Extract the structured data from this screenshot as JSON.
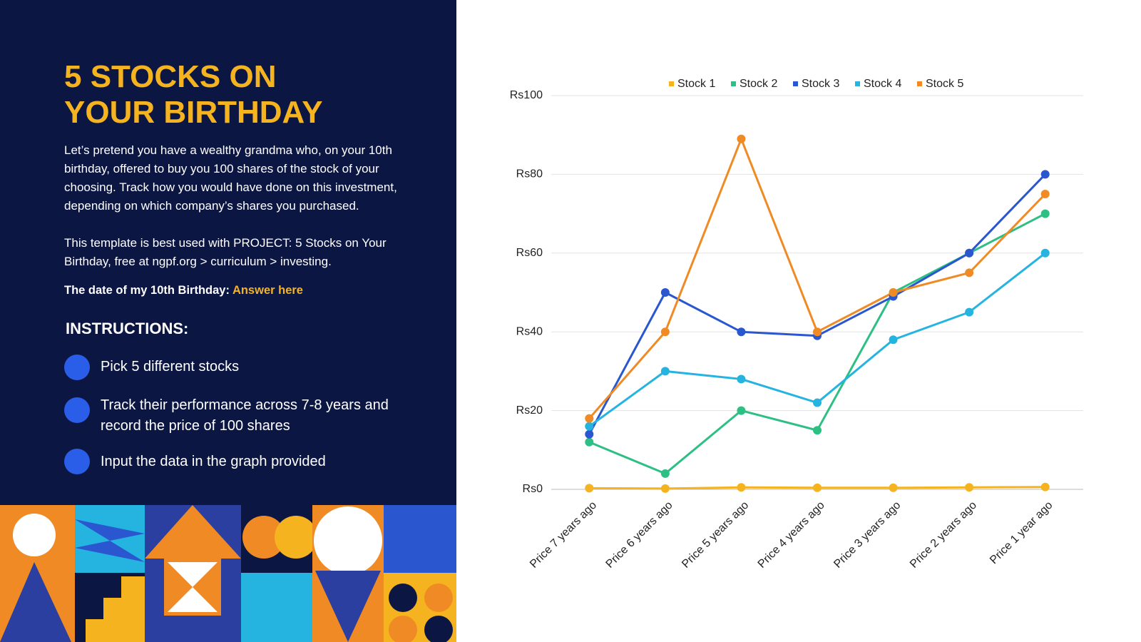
{
  "panel": {
    "title_lines": [
      "5 STOCKS ON",
      "YOUR BIRTHDAY"
    ],
    "paragraphs": [
      "Let’s pretend you have a wealthy grandma who, on your 10th birthday, offered to buy you 100 shares of the stock of your choosing. Track how you would have done on this investment, depending on which company’s shares you purchased.",
      "This template is best used with PROJECT: 5 Stocks on Your Birthday, free at ngpf.org > curriculum > investing."
    ],
    "birthday_label": "The date of my 10th Birthday:",
    "birthday_answer": "Answer here",
    "instructions_heading": "INSTRUCTIONS:",
    "instructions": [
      "Pick 5 different stocks",
      "Track their performance across 7-8 years and record the price of 100 shares",
      "Input the data in the graph provided"
    ]
  },
  "chart_data": {
    "type": "line",
    "categories": [
      "Price 7 years ago",
      "Price 6 years ago",
      "Price 5 years ago",
      "Price 4 years ago",
      "Price 3 years ago",
      "Price 2 years ago",
      "Price 1 year ago"
    ],
    "series": [
      {
        "name": "Stock 1",
        "color": "#f5b320",
        "values": [
          0.3,
          0.2,
          0.5,
          0.4,
          0.4,
          0.5,
          0.6
        ]
      },
      {
        "name": "Stock 2",
        "color": "#2dbf83",
        "values": [
          12,
          4,
          20,
          15,
          50,
          60,
          70
        ]
      },
      {
        "name": "Stock 3",
        "color": "#2a56d0",
        "values": [
          14,
          50,
          40,
          39,
          49,
          60,
          80
        ]
      },
      {
        "name": "Stock 4",
        "color": "#25b3e0",
        "values": [
          16,
          30,
          28,
          22,
          38,
          45,
          60
        ]
      },
      {
        "name": "Stock 5",
        "color": "#f08a24",
        "values": [
          18,
          40,
          89,
          40,
          50,
          55,
          75
        ]
      }
    ],
    "ylim": [
      0,
      100
    ],
    "yticks": [
      {
        "value": 0,
        "label": "Rs0"
      },
      {
        "value": 20,
        "label": "Rs20"
      },
      {
        "value": 40,
        "label": "Rs40"
      },
      {
        "value": 60,
        "label": "Rs60"
      },
      {
        "value": 80,
        "label": "Rs80"
      },
      {
        "value": 100,
        "label": "Rs100"
      }
    ],
    "grid": true,
    "legend": "top"
  }
}
